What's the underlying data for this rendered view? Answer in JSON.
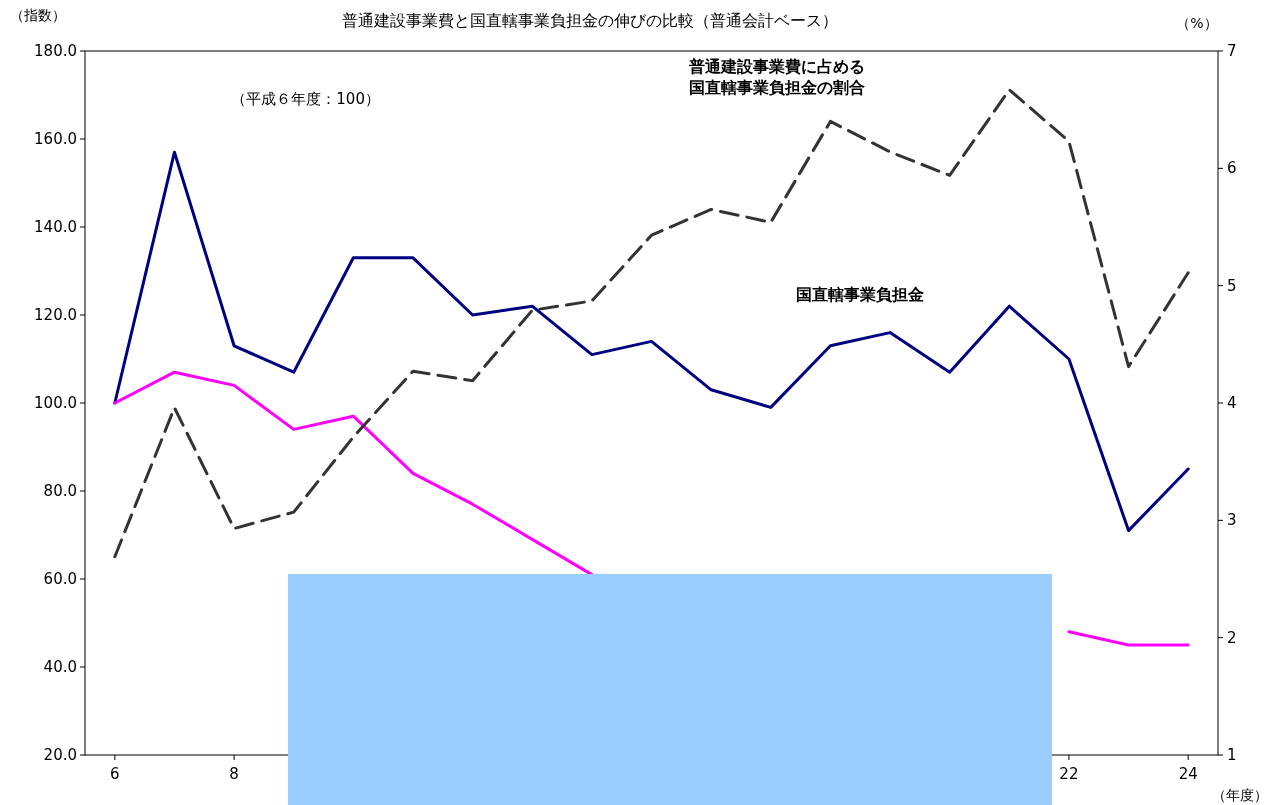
{
  "chart_data": {
    "type": "line",
    "title": "普通建設事業費と国直轄事業負担金の伸びの比較（普通会計ベース）",
    "ylabel": "（指数）",
    "y2label": "（%）",
    "xlabel": "（年度）",
    "annotations": [
      "（平成６年度：100）"
    ],
    "x": [
      6,
      7,
      8,
      9,
      10,
      11,
      12,
      13,
      14,
      15,
      16,
      17,
      18,
      19,
      20,
      21,
      22,
      23,
      24
    ],
    "xlim": [
      5.5,
      24.5
    ],
    "xticks": [
      6,
      8,
      22,
      24
    ],
    "ylim": [
      20,
      180
    ],
    "yticks": [
      {
        "value": 20,
        "label": "20.0"
      },
      {
        "value": 40,
        "label": "40.0"
      },
      {
        "value": 60,
        "label": "60.0"
      },
      {
        "value": 80,
        "label": "80.0"
      },
      {
        "value": 100,
        "label": "100.0"
      },
      {
        "value": 120,
        "label": "120.0"
      },
      {
        "value": 140,
        "label": "140.0"
      },
      {
        "value": 160,
        "label": "160.0"
      },
      {
        "value": 180,
        "label": "180.0"
      }
    ],
    "y2lim": [
      1,
      7
    ],
    "y2ticks": [
      1,
      2,
      3,
      4,
      5,
      6,
      7
    ],
    "grid": false,
    "legend": false,
    "series": [
      {
        "name": "国直轄事業負担金",
        "color": "#000080",
        "line_style": "solid",
        "values": [
          100,
          157,
          113,
          107,
          133,
          133,
          120,
          122,
          111,
          114,
          103,
          99,
          113,
          116,
          107,
          122,
          110,
          71,
          85
        ]
      },
      {
        "color": "#ff00ff",
        "line_style": "solid",
        "values": [
          100,
          107,
          104,
          94,
          97,
          84,
          77,
          69,
          61,
          null,
          null,
          null,
          null,
          null,
          null,
          null,
          48,
          45,
          45
        ]
      },
      {
        "name": "普通建設事業費に占める国直轄事業負担金の割合",
        "color": "#333333",
        "line_style": "dashed",
        "axis": "y2",
        "values": [
          2.69,
          3.96,
          2.93,
          3.07,
          3.71,
          4.27,
          4.19,
          4.79,
          4.87,
          5.43,
          5.65,
          5.54,
          6.4,
          6.14,
          5.94,
          6.67,
          6.23,
          4.31,
          5.11
        ]
      }
    ]
  }
}
